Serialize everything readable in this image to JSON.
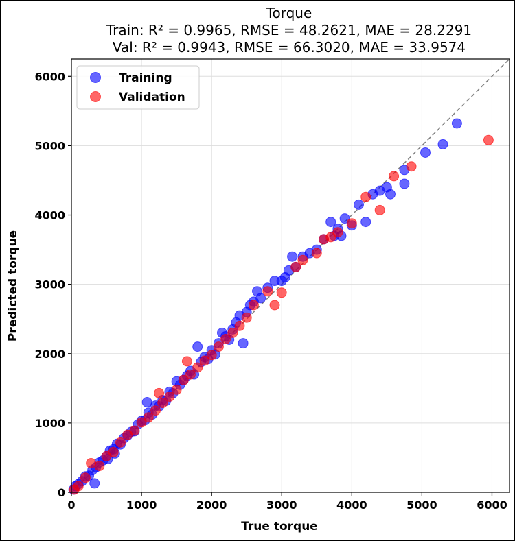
{
  "chart_data": {
    "type": "scatter",
    "title": "Torque",
    "subtitle_lines": [
      "Train: R² = 0.9965, RMSE = 48.2621, MAE = 28.2291",
      "Val: R² = 0.9943, RMSE = 66.3020, MAE = 33.9574"
    ],
    "xlabel": "True torque",
    "ylabel": "Predicted torque",
    "xlim": [
      0,
      6250
    ],
    "ylim": [
      0,
      6250
    ],
    "xticks": [
      0,
      1000,
      2000,
      3000,
      4000,
      5000,
      6000
    ],
    "yticks": [
      0,
      1000,
      2000,
      3000,
      4000,
      5000,
      6000
    ],
    "grid": true,
    "legend_position": "top-left",
    "identity_line": true,
    "colors": {
      "Training": "#0000ff",
      "Validation": "#ff0000",
      "identity": "#7f7f7f"
    },
    "series": [
      {
        "name": "Training",
        "points": [
          [
            30,
            40
          ],
          [
            60,
            90
          ],
          [
            100,
            120
          ],
          [
            150,
            160
          ],
          [
            200,
            230
          ],
          [
            250,
            240
          ],
          [
            300,
            320
          ],
          [
            330,
            130
          ],
          [
            350,
            360
          ],
          [
            400,
            430
          ],
          [
            450,
            460
          ],
          [
            500,
            520
          ],
          [
            520,
            480
          ],
          [
            550,
            600
          ],
          [
            600,
            620
          ],
          [
            620,
            560
          ],
          [
            650,
            700
          ],
          [
            700,
            690
          ],
          [
            750,
            780
          ],
          [
            800,
            820
          ],
          [
            850,
            870
          ],
          [
            900,
            880
          ],
          [
            950,
            980
          ],
          [
            1000,
            1030
          ],
          [
            1050,
            1040
          ],
          [
            1080,
            1300
          ],
          [
            1100,
            1150
          ],
          [
            1150,
            1120
          ],
          [
            1200,
            1250
          ],
          [
            1250,
            1240
          ],
          [
            1300,
            1330
          ],
          [
            1350,
            1320
          ],
          [
            1400,
            1450
          ],
          [
            1450,
            1430
          ],
          [
            1500,
            1600
          ],
          [
            1550,
            1550
          ],
          [
            1600,
            1620
          ],
          [
            1650,
            1680
          ],
          [
            1700,
            1750
          ],
          [
            1750,
            1700
          ],
          [
            1800,
            2100
          ],
          [
            1850,
            1880
          ],
          [
            1900,
            1950
          ],
          [
            1950,
            1920
          ],
          [
            2000,
            2050
          ],
          [
            2050,
            1990
          ],
          [
            2100,
            2150
          ],
          [
            2150,
            2300
          ],
          [
            2200,
            2250
          ],
          [
            2250,
            2200
          ],
          [
            2300,
            2350
          ],
          [
            2350,
            2450
          ],
          [
            2400,
            2550
          ],
          [
            2450,
            2150
          ],
          [
            2500,
            2600
          ],
          [
            2550,
            2700
          ],
          [
            2600,
            2750
          ],
          [
            2650,
            2900
          ],
          [
            2700,
            2800
          ],
          [
            2800,
            2950
          ],
          [
            2900,
            3050
          ],
          [
            3000,
            3050
          ],
          [
            3050,
            3100
          ],
          [
            3100,
            3200
          ],
          [
            3150,
            3400
          ],
          [
            3200,
            3250
          ],
          [
            3300,
            3400
          ],
          [
            3400,
            3450
          ],
          [
            3500,
            3500
          ],
          [
            3600,
            3650
          ],
          [
            3700,
            3900
          ],
          [
            3750,
            3700
          ],
          [
            3800,
            3800
          ],
          [
            3850,
            3700
          ],
          [
            3900,
            3950
          ],
          [
            4000,
            3850
          ],
          [
            4100,
            4150
          ],
          [
            4200,
            3900
          ],
          [
            4300,
            4300
          ],
          [
            4400,
            4350
          ],
          [
            4500,
            4400
          ],
          [
            4550,
            4300
          ],
          [
            4750,
            4450
          ],
          [
            4750,
            4650
          ],
          [
            5050,
            4900
          ],
          [
            5300,
            5020
          ],
          [
            5500,
            5320
          ]
        ]
      },
      {
        "name": "Validation",
        "points": [
          [
            40,
            40
          ],
          [
            100,
            90
          ],
          [
            200,
            210
          ],
          [
            280,
            420
          ],
          [
            400,
            380
          ],
          [
            500,
            520
          ],
          [
            600,
            580
          ],
          [
            700,
            720
          ],
          [
            800,
            830
          ],
          [
            900,
            890
          ],
          [
            1000,
            1010
          ],
          [
            1100,
            1080
          ],
          [
            1200,
            1180
          ],
          [
            1250,
            1430
          ],
          [
            1300,
            1290
          ],
          [
            1400,
            1380
          ],
          [
            1500,
            1480
          ],
          [
            1600,
            1620
          ],
          [
            1650,
            1890
          ],
          [
            1700,
            1700
          ],
          [
            1800,
            1800
          ],
          [
            1900,
            1900
          ],
          [
            2000,
            1980
          ],
          [
            2100,
            2100
          ],
          [
            2200,
            2210
          ],
          [
            2300,
            2300
          ],
          [
            2400,
            2400
          ],
          [
            2500,
            2520
          ],
          [
            2600,
            2700
          ],
          [
            2800,
            2900
          ],
          [
            2900,
            2700
          ],
          [
            3000,
            2880
          ],
          [
            3200,
            3250
          ],
          [
            3300,
            3350
          ],
          [
            3500,
            3450
          ],
          [
            3600,
            3650
          ],
          [
            3700,
            3680
          ],
          [
            3800,
            3750
          ],
          [
            4000,
            3880
          ],
          [
            4200,
            4260
          ],
          [
            4400,
            4070
          ],
          [
            4600,
            4560
          ],
          [
            4850,
            4700
          ],
          [
            5950,
            5080
          ]
        ]
      }
    ]
  }
}
